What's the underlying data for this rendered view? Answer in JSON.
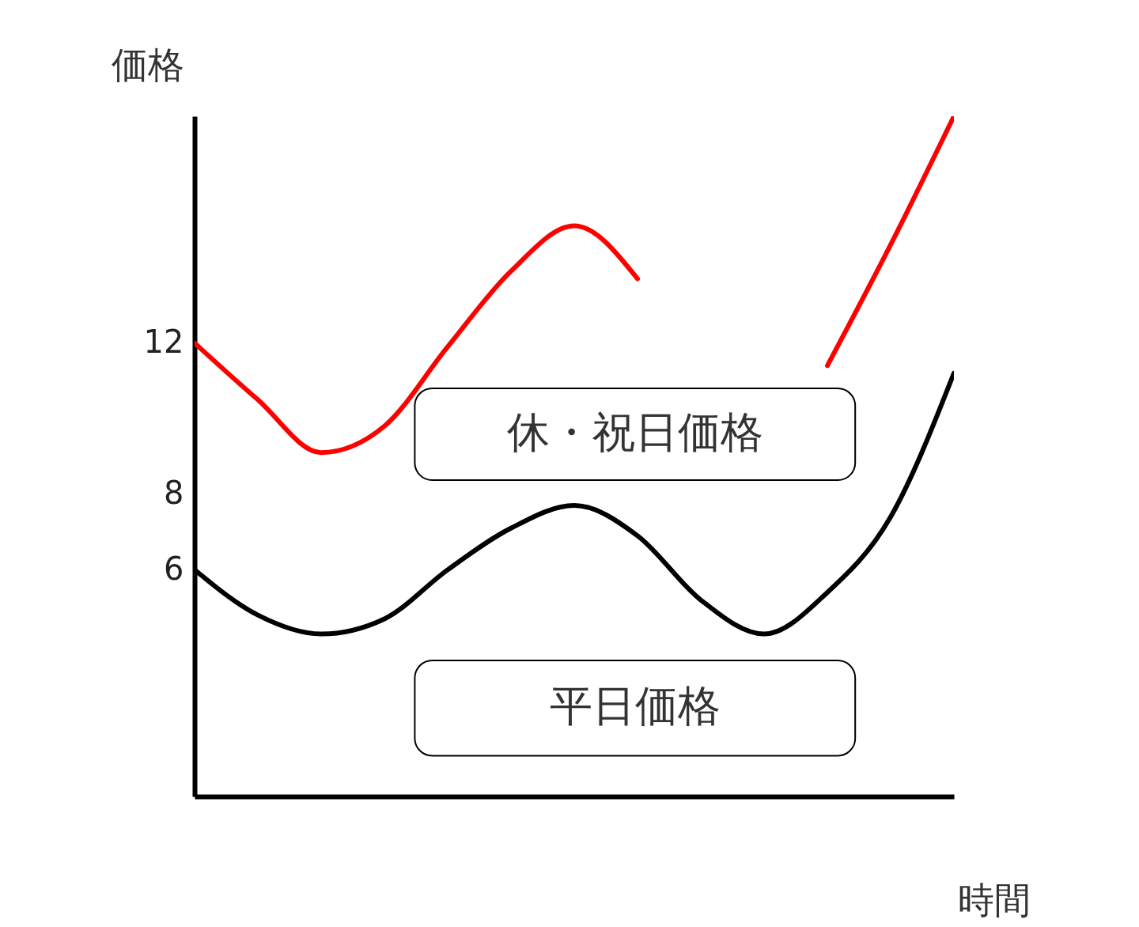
{
  "chart_data": {
    "type": "line",
    "xlabel": "時間",
    "ylabel": "価格",
    "categories": [
      null,
      null,
      null,
      null,
      null,
      null,
      null,
      null,
      null,
      null,
      null,
      null,
      null
    ],
    "series": [
      {
        "name": "休・祝日価格",
        "color": "#ff0000",
        "values": [
          12,
          10.5,
          9.1,
          9.8,
          11.9,
          13.9,
          15.1,
          13.7,
          null,
          null,
          11.4,
          14.6,
          18
        ]
      },
      {
        "name": "平日価格",
        "color": "#000000",
        "values": [
          6,
          4.8,
          4.3,
          4.7,
          6,
          7.1,
          7.7,
          6.9,
          5.2,
          4.3,
          5.4,
          7.4,
          11.2
        ]
      }
    ],
    "ylim": [
      0,
      18
    ],
    "yticks": [
      6,
      8,
      12
    ],
    "grid": false,
    "line_style": "solid",
    "marker": "none"
  }
}
